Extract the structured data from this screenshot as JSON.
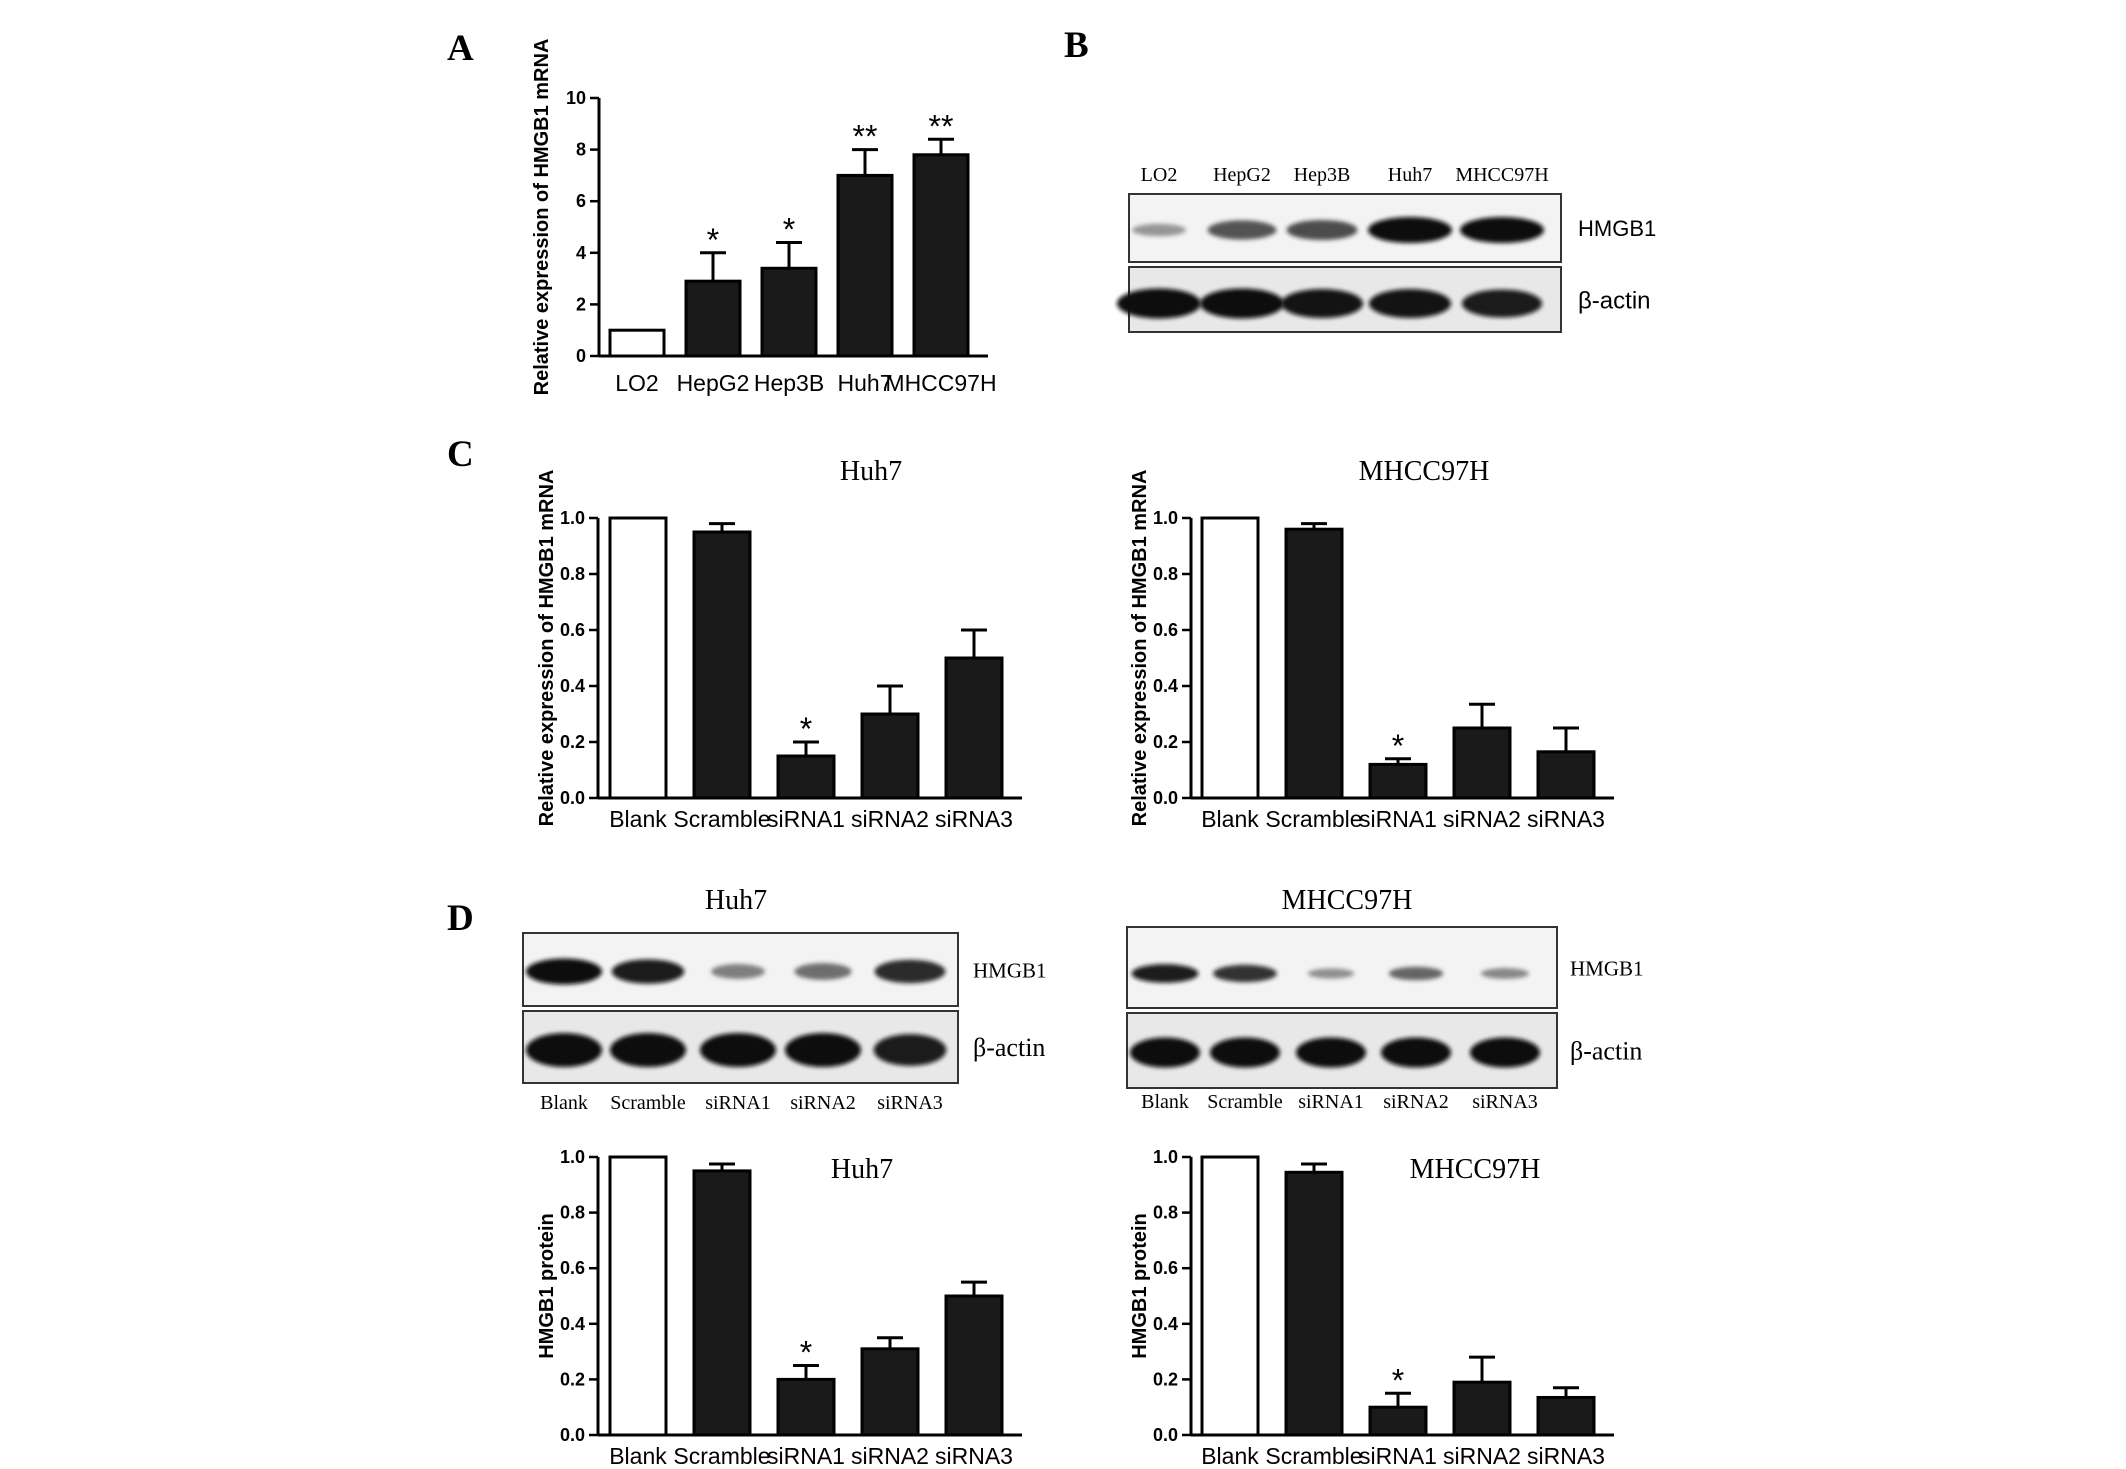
{
  "panels": {
    "A": "A",
    "B": "B",
    "C": "C",
    "D": "D"
  },
  "blot_b": {
    "lanes": [
      "LO2",
      "HepG2",
      "Hep3B",
      "Huh7",
      "MHCC97H"
    ],
    "protein_label": "HMGB1",
    "control_label": "β-actin",
    "hmgb1_intensity": [
      0.2,
      0.6,
      0.65,
      1.0,
      1.0
    ],
    "actin_intensity": [
      1.0,
      1.0,
      0.95,
      0.95,
      0.9
    ]
  },
  "blot_d_huh7": {
    "title": "Huh7",
    "lanes": [
      "Blank",
      "Scramble",
      "siRNA1",
      "siRNA2",
      "siRNA3"
    ],
    "protein_label": "HMGB1",
    "control_label": "β-actin",
    "hmgb1_intensity": [
      1.0,
      0.9,
      0.35,
      0.45,
      0.85
    ],
    "actin_intensity": [
      1.0,
      1.0,
      1.0,
      1.0,
      0.9
    ]
  },
  "blot_d_mhcc": {
    "title": "MHCC97H",
    "lanes": [
      "Blank",
      "Scramble",
      "siRNA1",
      "siRNA2",
      "siRNA3"
    ],
    "protein_label": "HMGB1",
    "control_label": "β-actin",
    "hmgb1_intensity": [
      0.9,
      0.8,
      0.25,
      0.5,
      0.3
    ],
    "actin_intensity": [
      1.0,
      1.0,
      1.0,
      1.0,
      1.0
    ]
  },
  "chart_data": [
    {
      "id": "A",
      "type": "bar",
      "title": "",
      "ylabel": "Relative expression of HMGB1 mRNA",
      "categories": [
        "LO2",
        "HepG2",
        "Hep3B",
        "Huh7",
        "MHCC97H"
      ],
      "values": [
        1,
        2.9,
        3.4,
        7.0,
        7.8
      ],
      "errors": [
        0,
        1.1,
        1.0,
        1.0,
        0.6
      ],
      "significance": [
        "",
        "*",
        "*",
        "**",
        "**"
      ],
      "fill": [
        "#ffffff",
        "#1a1a1a",
        "#1a1a1a",
        "#1a1a1a",
        "#1a1a1a"
      ],
      "ylim": [
        0,
        10
      ],
      "yticks": [
        "0",
        "2",
        "4",
        "6",
        "8",
        "10"
      ]
    },
    {
      "id": "C-Huh7",
      "type": "bar",
      "title": "Huh7",
      "ylabel": "Relative expression of HMGB1 mRNA",
      "categories": [
        "Blank",
        "Scramble",
        "siRNA1",
        "siRNA2",
        "siRNA3"
      ],
      "values": [
        1.0,
        0.95,
        0.15,
        0.3,
        0.5
      ],
      "errors": [
        0,
        0.03,
        0.05,
        0.1,
        0.1
      ],
      "significance": [
        "",
        "",
        "*",
        "",
        ""
      ],
      "fill": [
        "#ffffff",
        "#1a1a1a",
        "#1a1a1a",
        "#1a1a1a",
        "#1a1a1a"
      ],
      "ylim": [
        0,
        1.0
      ],
      "yticks": [
        "0.0",
        "0.2",
        "0.4",
        "0.6",
        "0.8",
        "1.0"
      ]
    },
    {
      "id": "C-MHCC97H",
      "type": "bar",
      "title": "MHCC97H",
      "ylabel": "Relative expression of HMGB1 mRNA",
      "categories": [
        "Blank",
        "Scramble",
        "siRNA1",
        "siRNA2",
        "siRNA3"
      ],
      "values": [
        1.0,
        0.96,
        0.12,
        0.25,
        0.165
      ],
      "errors": [
        0,
        0.02,
        0.02,
        0.085,
        0.085
      ],
      "significance": [
        "",
        "",
        "*",
        "",
        ""
      ],
      "fill": [
        "#ffffff",
        "#1a1a1a",
        "#1a1a1a",
        "#1a1a1a",
        "#1a1a1a"
      ],
      "ylim": [
        0,
        1.0
      ],
      "yticks": [
        "0.0",
        "0.2",
        "0.4",
        "0.6",
        "0.8",
        "1.0"
      ]
    },
    {
      "id": "D-Huh7",
      "type": "bar",
      "title": "Huh7",
      "ylabel": "HMGB1 protein",
      "categories": [
        "Blank",
        "Scramble",
        "siRNA1",
        "siRNA2",
        "siRNA3"
      ],
      "values": [
        1.0,
        0.95,
        0.2,
        0.31,
        0.5
      ],
      "errors": [
        0,
        0.025,
        0.05,
        0.04,
        0.05
      ],
      "significance": [
        "",
        "",
        "*",
        "",
        ""
      ],
      "fill": [
        "#ffffff",
        "#1a1a1a",
        "#1a1a1a",
        "#1a1a1a",
        "#1a1a1a"
      ],
      "ylim": [
        0,
        1.0
      ],
      "yticks": [
        "0.0",
        "0.2",
        "0.4",
        "0.6",
        "0.8",
        "1.0"
      ]
    },
    {
      "id": "D-MHCC97H",
      "type": "bar",
      "title": "MHCC97H",
      "ylabel": "HMGB1 protein",
      "categories": [
        "Blank",
        "Scramble",
        "siRNA1",
        "siRNA2",
        "siRNA3"
      ],
      "values": [
        1.0,
        0.945,
        0.1,
        0.19,
        0.135
      ],
      "errors": [
        0,
        0.03,
        0.05,
        0.09,
        0.035
      ],
      "significance": [
        "",
        "",
        "*",
        "",
        ""
      ],
      "fill": [
        "#ffffff",
        "#1a1a1a",
        "#1a1a1a",
        "#1a1a1a",
        "#1a1a1a"
      ],
      "ylim": [
        0,
        1.0
      ],
      "yticks": [
        "0.0",
        "0.2",
        "0.4",
        "0.6",
        "0.8",
        "1.0"
      ]
    }
  ]
}
